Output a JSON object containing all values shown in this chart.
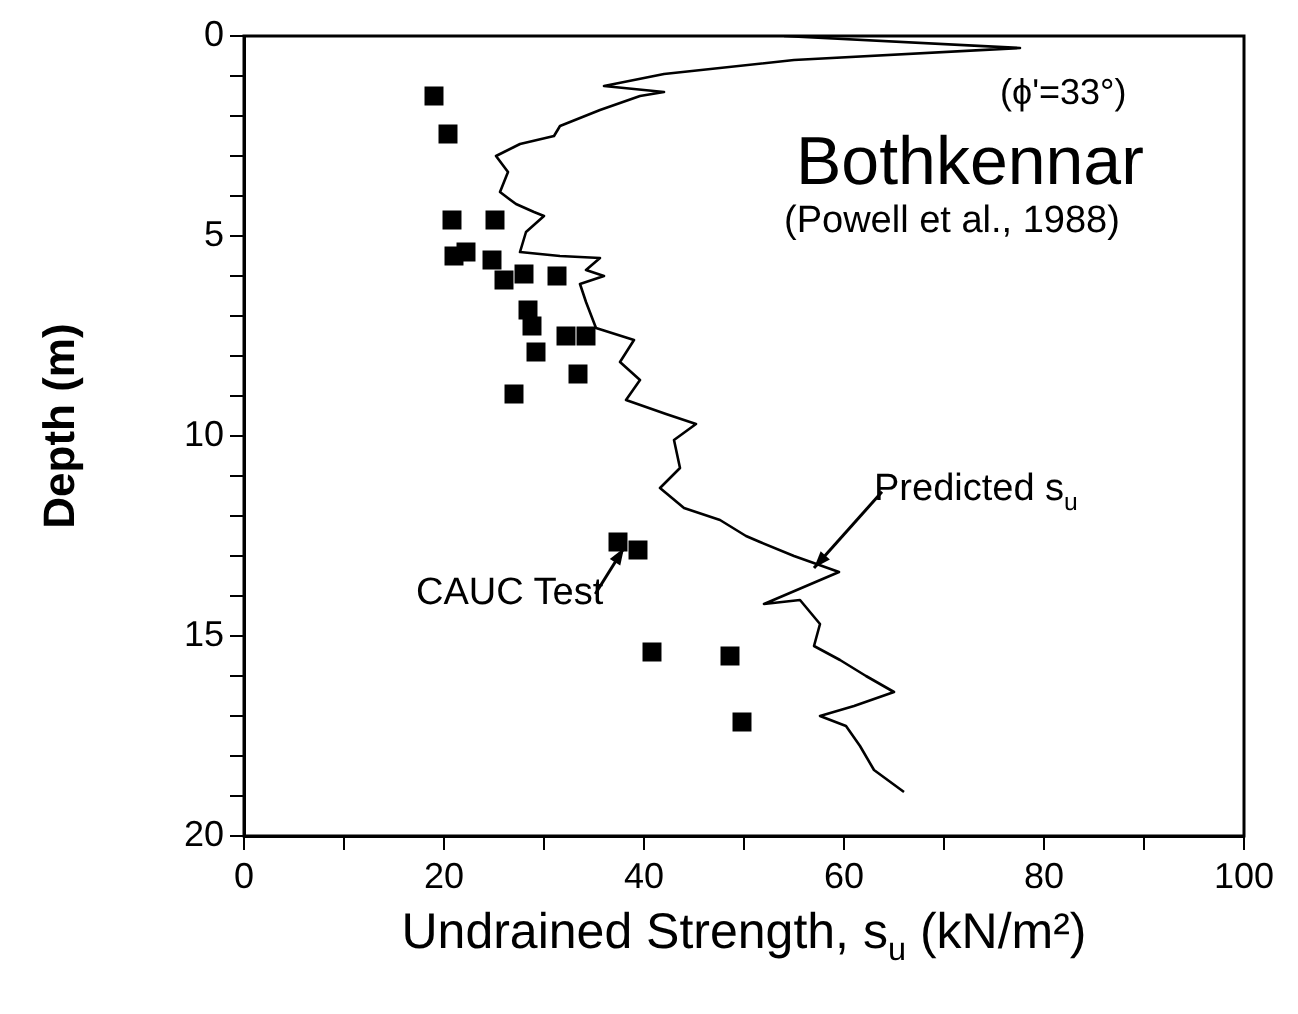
{
  "chart_data": {
    "type": "scatter",
    "xlabel": "Undrained Strength, s$_{u}$ (kN/m²)",
    "ylabel": "Depth (m)",
    "xlim": [
      0,
      100
    ],
    "xticks": [
      0,
      {
        "value": 10,
        "label": null
      },
      20,
      {
        "value": 30,
        "label": null
      },
      40,
      {
        "value": 50,
        "label": null
      },
      60,
      {
        "value": 70,
        "label": null
      },
      80,
      {
        "value": 90,
        "label": null
      },
      100
    ],
    "ylim": [
      20,
      0
    ],
    "yticks": [
      0,
      {
        "value": 1,
        "label": null
      },
      {
        "value": 2,
        "label": null
      },
      {
        "value": 3,
        "label": null
      },
      {
        "value": 4,
        "label": null
      },
      5,
      {
        "value": 6,
        "label": null
      },
      {
        "value": 7,
        "label": null
      },
      {
        "value": 8,
        "label": null
      },
      {
        "value": 9,
        "label": null
      },
      10,
      {
        "value": 11,
        "label": null
      },
      {
        "value": 12,
        "label": null
      },
      {
        "value": 13,
        "label": null
      },
      {
        "value": 14,
        "label": null
      },
      15,
      {
        "value": 16,
        "label": null
      },
      {
        "value": 17,
        "label": null
      },
      {
        "value": 18,
        "label": null
      },
      {
        "value": 19,
        "label": null
      },
      20
    ],
    "grid": false,
    "legend": false,
    "series": [
      {
        "type": "line",
        "color": "#000000",
        "marker": "none",
        "line_style": "solid",
        "x": [
          54,
          77.6,
          55,
          42,
          36,
          42,
          39.6,
          35.6,
          31.6,
          31,
          27.6,
          25.2,
          26.4,
          25.6,
          27.2,
          29,
          30,
          28.2,
          27.6,
          31.6,
          35.6,
          34.2,
          36,
          33.6,
          34.2,
          35.2,
          39,
          37.6,
          39.6,
          38.2,
          42.2,
          45.2,
          43,
          43.6,
          41.6,
          44,
          47.6,
          50.2,
          51.6,
          55,
          59.5,
          52,
          55.6,
          57.6,
          57,
          59.6,
          62.2,
          65,
          61,
          57.6,
          60.2,
          61.6,
          63,
          66
        ],
        "values": [
          0,
          0.3,
          0.6,
          0.95,
          1.25,
          1.4,
          1.5,
          1.85,
          2.25,
          2.5,
          2.7,
          3.0,
          3.4,
          3.9,
          4.2,
          4.4,
          4.5,
          4.9,
          5.4,
          5.5,
          5.55,
          5.85,
          6.0,
          6.2,
          6.65,
          7.3,
          7.6,
          8.15,
          8.6,
          9.1,
          9.45,
          9.7,
          10.1,
          10.8,
          11.3,
          11.8,
          12.1,
          12.5,
          12.65,
          13.0,
          13.4,
          14.2,
          14.1,
          14.7,
          15.25,
          15.6,
          16.0,
          16.4,
          16.75,
          17.0,
          17.25,
          17.75,
          18.35,
          18.9
        ]
      },
      {
        "color": "#000000",
        "marker": "square",
        "x": [
          19,
          20.4,
          20.8,
          25.1,
          21,
          22.2,
          24.8,
          26,
          28,
          31.3,
          28.4,
          28.8,
          32.2,
          34.2,
          29.2,
          33.4,
          27,
          37.4,
          39.4,
          40.8,
          48.6,
          49.8
        ],
        "values": [
          1.5,
          2.45,
          4.6,
          4.6,
          5.5,
          5.4,
          5.6,
          6.1,
          5.95,
          6.0,
          6.85,
          7.25,
          7.5,
          7.5,
          7.9,
          8.45,
          8.95,
          12.65,
          12.85,
          15.4,
          15.5,
          17.15
        ]
      }
    ],
    "annotations": [
      "(ϕ'=33°)",
      "Bothkennar",
      "(Powell et al., 1988)",
      {
        "text": "Predicted s$_{u}$",
        "x": 57,
        "y": 13.3
      },
      {
        "text": "CAUC Test",
        "x": 38,
        "y": 12.8
      }
    ]
  }
}
